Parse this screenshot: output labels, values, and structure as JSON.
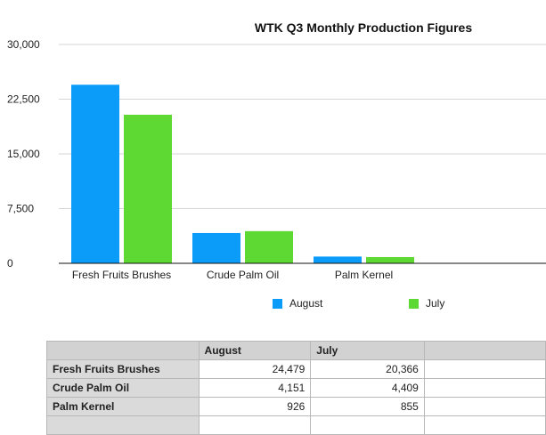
{
  "chart_data": {
    "type": "bar",
    "title": "WTK Q3 Monthly Production Figures",
    "categories": [
      "Fresh Fruits Brushes",
      "Crude Palm Oil",
      "Palm Kernel"
    ],
    "series": [
      {
        "name": "August",
        "values": [
          24479,
          4151,
          926
        ],
        "color": "#0a9cf8"
      },
      {
        "name": "July",
        "values": [
          20366,
          4409,
          855
        ],
        "color": "#5ed933"
      }
    ],
    "ylim": [
      0,
      30000
    ],
    "yticks": [
      0,
      7500,
      15000,
      22500,
      30000
    ],
    "ytick_labels": [
      "0",
      "7,500",
      "15,000",
      "22,500",
      "30,000"
    ],
    "xlabel": "",
    "ylabel": "",
    "grid": true,
    "legend_position": "bottom"
  },
  "table": {
    "headers": [
      "",
      "August",
      "July",
      ""
    ],
    "rows": [
      {
        "label": "Fresh Fruits Brushes",
        "august": "24,479",
        "july": "20,366"
      },
      {
        "label": "Crude Palm Oil",
        "august": "4,151",
        "july": "4,409"
      },
      {
        "label": "Palm Kernel",
        "august": "926",
        "july": "855"
      }
    ]
  }
}
